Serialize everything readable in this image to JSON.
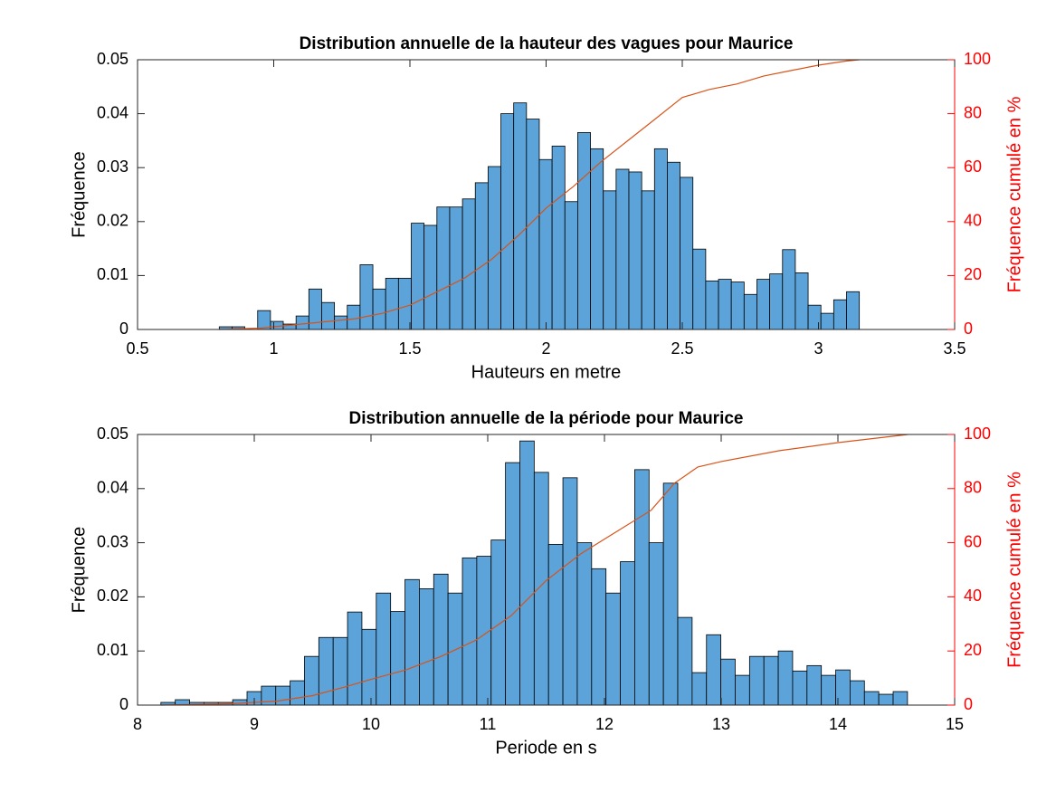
{
  "chart_data": [
    {
      "type": "histogram",
      "title": "Distribution annuelle de la hauteur des vagues pour Maurice",
      "xlabel": "Hauteurs en metre",
      "ylabel": "Fréquence",
      "y2label": "Fréquence cumulé en %",
      "bins": [
        0.8,
        0.847,
        0.894,
        0.941,
        0.988,
        1.035,
        1.082,
        1.129,
        1.176,
        1.223,
        1.27,
        1.317,
        1.364,
        1.411,
        1.458,
        1.505,
        1.552,
        1.599,
        1.646,
        1.693,
        1.74,
        1.787,
        1.834,
        1.881,
        1.928,
        1.975,
        2.022,
        2.069,
        2.116,
        2.163,
        2.21,
        2.257,
        2.304,
        2.351,
        2.398,
        2.445,
        2.492,
        2.539,
        2.586,
        2.633,
        2.68,
        2.727,
        2.774,
        2.821,
        2.868,
        2.915,
        2.962,
        3.009,
        3.056,
        3.103,
        3.15
      ],
      "values": [
        0.0005,
        0.0005,
        0,
        0.0035,
        0.0015,
        0.001,
        0.0025,
        0.0075,
        0.005,
        0.0025,
        0.0045,
        0.012,
        0.0075,
        0.0095,
        0.0095,
        0.0197,
        0.0193,
        0.0227,
        0.0227,
        0.0242,
        0.0272,
        0.0302,
        0.04,
        0.042,
        0.039,
        0.0315,
        0.034,
        0.0237,
        0.0365,
        0.0335,
        0.0257,
        0.0297,
        0.0292,
        0.0257,
        0.0335,
        0.031,
        0.0282,
        0.0149,
        0.009,
        0.0093,
        0.0088,
        0.0065,
        0.0093,
        0.0103,
        0.0148,
        0.0105,
        0.0045,
        0.003,
        0.0055,
        0.007
      ],
      "color": "#5ba3d8",
      "xlim": [
        0.5,
        3.5
      ],
      "xticks": [
        0.5,
        1,
        1.5,
        2,
        2.5,
        3,
        3.5
      ],
      "ylim": [
        0,
        0.05
      ],
      "yticks": [
        0,
        0.01,
        0.02,
        0.03,
        0.04,
        0.05
      ],
      "y2lim": [
        0,
        100
      ],
      "y2ticks": [
        0,
        20,
        40,
        60,
        80,
        100
      ],
      "y2color": "#ff0000",
      "series": [
        {
          "axis": "y2",
          "color": "#d95319",
          "x": [
            0.8,
            0.95,
            1.0,
            1.2,
            1.3,
            1.4,
            1.5,
            1.6,
            1.7,
            1.8,
            1.9,
            2.0,
            2.1,
            2.2,
            2.3,
            2.4,
            2.5,
            2.6,
            2.7,
            2.8,
            2.9,
            3.0,
            3.1,
            3.15
          ],
          "values": [
            0,
            0.5,
            1,
            3,
            4,
            6,
            9,
            14,
            19,
            26,
            35,
            45,
            53,
            62,
            70,
            78,
            86,
            89,
            91,
            94,
            96,
            98,
            99.5,
            100
          ]
        }
      ]
    },
    {
      "type": "histogram",
      "title": "Distribution annuelle de la période pour Maurice",
      "xlabel": "Periode en s",
      "ylabel": "Fréquence",
      "y2label": "Fréquence cumulé en %",
      "bins": [
        8.2,
        8.323,
        8.446,
        8.569,
        8.692,
        8.815,
        8.938,
        9.061,
        9.184,
        9.307,
        9.43,
        9.553,
        9.676,
        9.799,
        9.922,
        10.045,
        10.168,
        10.291,
        10.414,
        10.537,
        10.66,
        10.783,
        10.906,
        11.029,
        11.152,
        11.275,
        11.398,
        11.521,
        11.644,
        11.767,
        11.89,
        12.013,
        12.136,
        12.259,
        12.382,
        12.505,
        12.628,
        12.751,
        12.874,
        12.997,
        13.12,
        13.243,
        13.366,
        13.489,
        13.612,
        13.735,
        13.858,
        13.981,
        14.104,
        14.227,
        14.35,
        14.473,
        14.596
      ],
      "values": [
        0.0005,
        0.001,
        0.0005,
        0.0005,
        0.0005,
        0.001,
        0.0025,
        0.0035,
        0.0035,
        0.0045,
        0.009,
        0.0125,
        0.0125,
        0.0172,
        0.014,
        0.0207,
        0.0173,
        0.0232,
        0.0215,
        0.0242,
        0.0207,
        0.0272,
        0.0275,
        0.0305,
        0.0448,
        0.0488,
        0.043,
        0.0297,
        0.042,
        0.03,
        0.0252,
        0.0207,
        0.0265,
        0.0435,
        0.03,
        0.041,
        0.0162,
        0.006,
        0.013,
        0.0085,
        0.0055,
        0.009,
        0.009,
        0.01,
        0.0063,
        0.0073,
        0.0055,
        0.0065,
        0.0045,
        0.0025,
        0.002,
        0.0025
      ],
      "color": "#5ba3d8",
      "xlim": [
        8,
        15
      ],
      "xticks": [
        8,
        9,
        10,
        11,
        12,
        13,
        14,
        15
      ],
      "ylim": [
        0,
        0.05
      ],
      "yticks": [
        0,
        0.01,
        0.02,
        0.03,
        0.04,
        0.05
      ],
      "y2lim": [
        0,
        100
      ],
      "y2ticks": [
        0,
        20,
        40,
        60,
        80,
        100
      ],
      "y2color": "#ff0000",
      "series": [
        {
          "axis": "y2",
          "color": "#d95319",
          "x": [
            8.2,
            8.8,
            9.2,
            9.5,
            9.8,
            10,
            10.3,
            10.6,
            10.9,
            11.2,
            11.5,
            11.8,
            12.1,
            12.4,
            12.6,
            12.8,
            13.0,
            13.5,
            14,
            14.5,
            14.6
          ],
          "values": [
            0,
            0.5,
            1.5,
            3.5,
            7,
            9.5,
            13,
            18,
            24,
            33,
            46,
            56,
            64,
            72,
            82,
            88,
            90,
            94,
            97,
            99.5,
            100
          ]
        }
      ]
    }
  ]
}
